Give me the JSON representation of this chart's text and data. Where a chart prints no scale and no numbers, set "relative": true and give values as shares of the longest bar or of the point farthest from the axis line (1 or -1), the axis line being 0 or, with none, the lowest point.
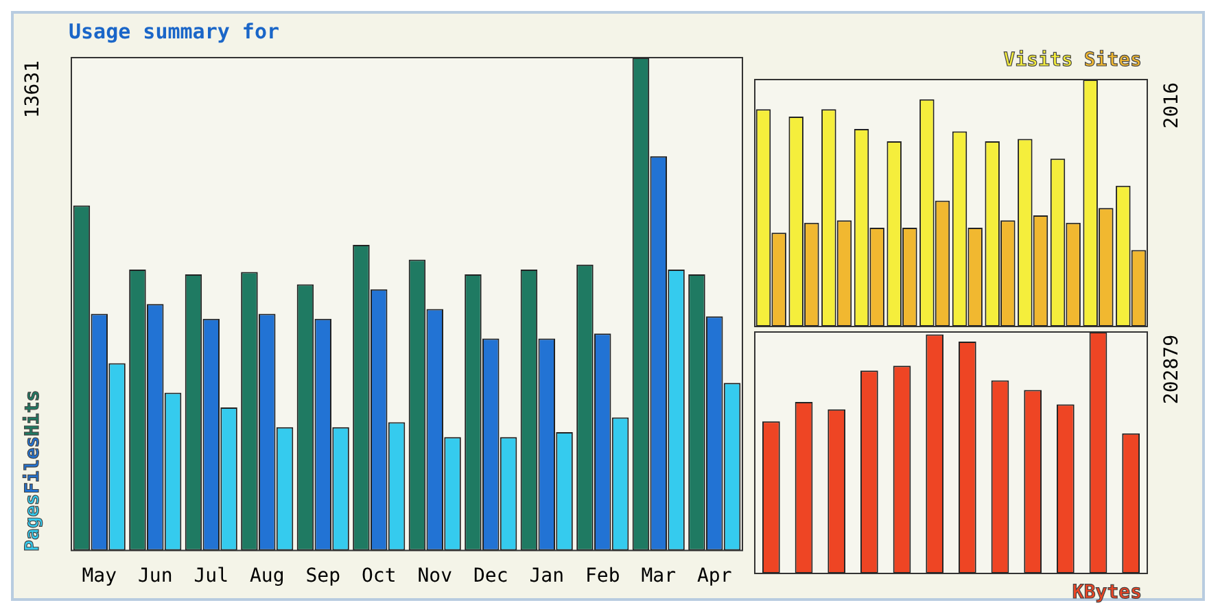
{
  "chart_data": [
    {
      "type": "bar",
      "title": "Usage summary for",
      "categories": [
        "May",
        "Jun",
        "Jul",
        "Aug",
        "Sep",
        "Oct",
        "Nov",
        "Dec",
        "Jan",
        "Feb",
        "Mar",
        "Apr"
      ],
      "relative": true,
      "tick_labels": "x",
      "legend": "left",
      "annotations": [
        "13631"
      ],
      "series": [
        {
          "name": "Hits",
          "color": "#1f7a62",
          "values": [
            0.7,
            0.57,
            0.56,
            0.565,
            0.54,
            0.62,
            0.59,
            0.56,
            0.57,
            0.58,
            1,
            0.56
          ]
        },
        {
          "name": "Files",
          "color": "#2273d4",
          "values": [
            0.48,
            0.5,
            0.47,
            0.48,
            0.47,
            0.53,
            0.49,
            0.43,
            0.43,
            0.44,
            0.8,
            0.475
          ]
        },
        {
          "name": "Pages",
          "color": "#35cbee",
          "values": [
            0.38,
            0.32,
            0.29,
            0.25,
            0.25,
            0.26,
            0.23,
            0.23,
            0.24,
            0.27,
            0.57,
            0.34
          ]
        }
      ]
    },
    {
      "type": "bar",
      "categories": [
        null,
        null,
        null,
        null,
        null,
        null,
        null,
        null,
        null,
        null,
        null,
        null
      ],
      "relative": true,
      "tick_labels": false,
      "legend": "top right",
      "annotations": [
        "2016"
      ],
      "series": [
        {
          "name": "Visits",
          "color": "#f5ee3c",
          "values": [
            0.88,
            0.85,
            0.88,
            0.8,
            0.75,
            0.92,
            0.79,
            0.75,
            0.76,
            0.68,
            1,
            0.57
          ]
        },
        {
          "name": "Sites",
          "color": "#f1b830",
          "values": [
            0.38,
            0.42,
            0.43,
            0.4,
            0.4,
            0.51,
            0.4,
            0.43,
            0.45,
            0.42,
            0.48,
            0.31
          ]
        }
      ]
    },
    {
      "type": "bar",
      "categories": [
        null,
        null,
        null,
        null,
        null,
        null,
        null,
        null,
        null,
        null,
        null,
        null
      ],
      "relative": true,
      "tick_labels": false,
      "legend": "bottom right",
      "annotations": [
        "202879"
      ],
      "series": [
        {
          "name": "KBytes",
          "color": "#ee4524",
          "values": [
            0.63,
            0.71,
            0.68,
            0.84,
            0.86,
            0.99,
            0.96,
            0.8,
            0.76,
            0.7,
            1,
            0.58
          ]
        }
      ]
    }
  ]
}
